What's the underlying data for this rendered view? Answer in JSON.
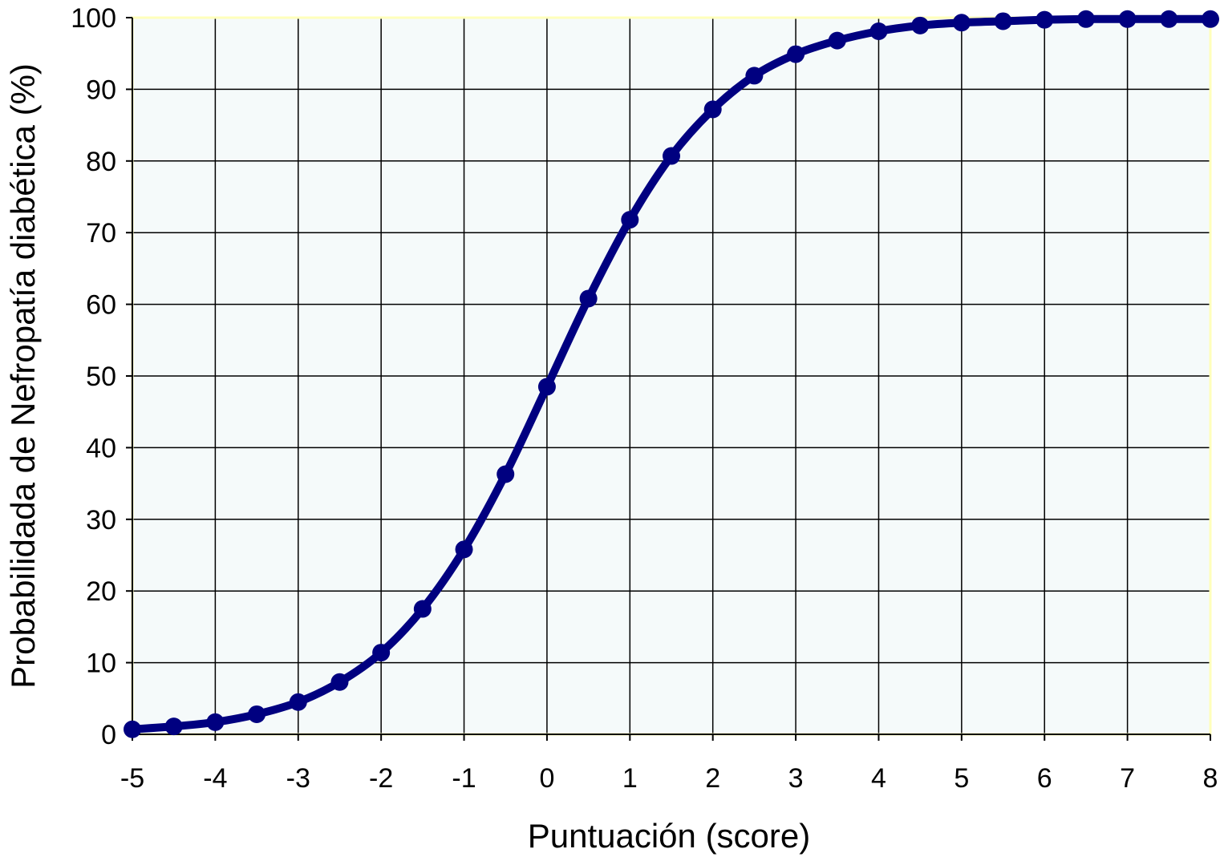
{
  "chart_data": {
    "type": "line",
    "title": "",
    "xlabel": "Puntuación (score)",
    "ylabel": "Probabilidada de Nefropatía diabética (%)",
    "xlim": [
      -5,
      8
    ],
    "ylim": [
      0,
      100
    ],
    "x_ticks": [
      "-5",
      "-4",
      "-3",
      "-2",
      "-1",
      "0",
      "1",
      "2",
      "3",
      "4",
      "5",
      "6",
      "7",
      "8"
    ],
    "y_ticks": [
      "0",
      "10",
      "20",
      "30",
      "40",
      "50",
      "60",
      "70",
      "80",
      "90",
      "100"
    ],
    "grid": true,
    "legend": "none",
    "colors": {
      "series": "#000080",
      "plot_background": "#f5fafa",
      "plot_border": "#ffffbb",
      "grid": "#000000"
    },
    "series": [
      {
        "x": [
          -5,
          -4.5,
          -4,
          -3.5,
          -3,
          -2.5,
          -2,
          -1.5,
          -1,
          -0.5,
          0,
          0.5,
          1,
          1.5,
          2,
          2.5,
          3,
          3.5,
          4,
          4.5,
          5,
          5.5,
          6,
          6.5,
          7,
          7.5,
          8
        ],
        "y": [
          0.7,
          1.1,
          1.7,
          2.8,
          4.5,
          7.3,
          11.4,
          17.5,
          25.8,
          36.3,
          48.5,
          60.8,
          71.8,
          80.7,
          87.2,
          91.9,
          94.9,
          96.8,
          98.1,
          98.9,
          99.3,
          99.5,
          99.7,
          99.8,
          99.8,
          99.8,
          99.8
        ]
      }
    ]
  }
}
